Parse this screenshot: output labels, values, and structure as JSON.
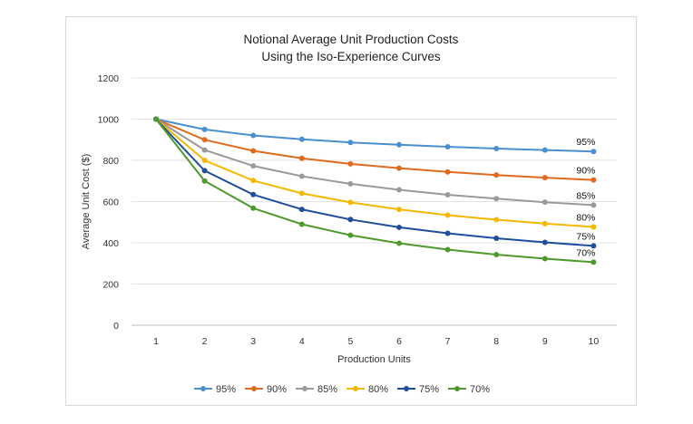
{
  "chart_data": {
    "type": "line",
    "title": "Notional Average Unit Production Costs",
    "subtitle": "Using the Iso-Experience Curves",
    "xlabel": "Production Units",
    "ylabel": "Average Unit Cost ($)",
    "x": [
      1,
      2,
      3,
      4,
      5,
      6,
      7,
      8,
      9,
      10
    ],
    "ylim": [
      0,
      1200
    ],
    "yticks": [
      0,
      200,
      400,
      600,
      800,
      1000,
      1200
    ],
    "grid": true,
    "legend_position": "bottom",
    "series": [
      {
        "name": "95%",
        "color": "#4a8fd0",
        "values": [
          1000,
          950,
          921,
          902,
          887,
          876,
          866,
          857,
          850,
          843
        ]
      },
      {
        "name": "90%",
        "color": "#e06a1e",
        "values": [
          1000,
          900,
          846,
          810,
          783,
          762,
          744,
          729,
          716,
          705
        ]
      },
      {
        "name": "85%",
        "color": "#9a9a9a",
        "values": [
          1000,
          850,
          773,
          723,
          686,
          657,
          633,
          614,
          597,
          583
        ]
      },
      {
        "name": "80%",
        "color": "#f5b800",
        "values": [
          1000,
          800,
          702,
          640,
          596,
          562,
          534,
          512,
          493,
          477
        ]
      },
      {
        "name": "75%",
        "color": "#1f4e9c",
        "values": [
          1000,
          750,
          634,
          562,
          513,
          475,
          446,
          422,
          402,
          385
        ]
      },
      {
        "name": "70%",
        "color": "#4f9a2c",
        "values": [
          1000,
          700,
          568,
          490,
          437,
          398,
          367,
          343,
          323,
          306
        ]
      }
    ]
  }
}
